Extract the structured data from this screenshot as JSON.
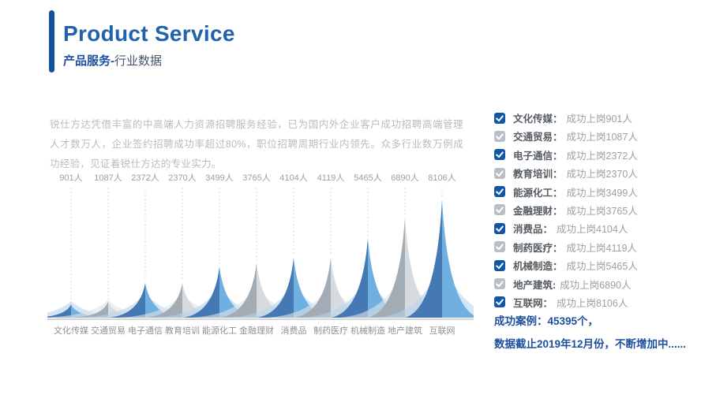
{
  "header": {
    "title": "Product Service",
    "subtitle_primary": "产品服务",
    "subtitle_separator": "-",
    "subtitle_secondary": "行业数据"
  },
  "intro": {
    "text": "锐仕方达凭借丰富的中高端人力资源招聘服务经验，已为国内外企业客户成功招聘高端管理人才数万人，企业签约招聘成功率超过80%，职位招聘周期行业内领先。众多行业数万例成功经验，见证着锐仕方达的专业实力。"
  },
  "chart_data": {
    "type": "area",
    "subtype": "mirrored-concave-peaks",
    "title": "行业数据 (成功上岗人数)",
    "categories": [
      "文化传媒",
      "交通贸易",
      "电子通信",
      "教育培训",
      "能源化工",
      "金融理财",
      "消费品",
      "制药医疗",
      "机械制造",
      "地产建筑",
      "互联网"
    ],
    "values": [
      901,
      1087,
      2372,
      2370,
      3499,
      3765,
      4104,
      4119,
      5465,
      6890,
      8106
    ],
    "value_labels": [
      "901人",
      "1087人",
      "2372人",
      "2370人",
      "3499人",
      "3765人",
      "4104人",
      "4119人",
      "5465人",
      "6890人",
      "8106人"
    ],
    "color_pattern": [
      "blue",
      "gray",
      "blue",
      "gray",
      "blue",
      "gray",
      "blue",
      "gray",
      "blue",
      "gray",
      "blue"
    ],
    "unit": "人",
    "xlabel": "",
    "ylabel": "",
    "ylim": [
      0,
      8106
    ],
    "grid": "dotted vertical leader lines above each peak",
    "legend_position": "right checklist panel"
  },
  "checklist": {
    "items": [
      {
        "label": "文化传媒：",
        "value": "成功上岗901人",
        "checkbox": "blue"
      },
      {
        "label": "交通贸易：",
        "value": "成功上岗1087人",
        "checkbox": "gray"
      },
      {
        "label": "电子通信：",
        "value": "成功上岗2372人",
        "checkbox": "blue"
      },
      {
        "label": "教育培训：",
        "value": "成功上岗2370人",
        "checkbox": "gray"
      },
      {
        "label": "能源化工：",
        "value": "成功上岗3499人",
        "checkbox": "blue"
      },
      {
        "label": "金融理财：",
        "value": "成功上岗3765人",
        "checkbox": "gray"
      },
      {
        "label": "消费品：",
        "value": "成功上岗4104人",
        "checkbox": "blue"
      },
      {
        "label": "制药医疗：",
        "value": "成功上岗4119人",
        "checkbox": "gray"
      },
      {
        "label": "机械制造：",
        "value": "成功上岗5465人",
        "checkbox": "blue"
      },
      {
        "label": "地产建筑:",
        "value": "成功上岗6890人",
        "checkbox": "gray"
      },
      {
        "label": "互联网：",
        "value": "成功上岗8106人",
        "checkbox": "blue"
      }
    ]
  },
  "summary": {
    "line1": "成功案例：45395个，",
    "line2": "数据截止2019年12月份，不断增加中......"
  },
  "colors": {
    "accent_bar": "#1450a0",
    "title": "#2062ae",
    "subtitle_primary": "#1d4f9e",
    "subtitle_secondary": "#46566c",
    "blue_dark": "#4579b4",
    "blue_light": "#6fb0e0",
    "blue_pale": "#b7d3eb",
    "gray_dark": "#a3abb4",
    "gray_light": "#d6dbdf",
    "gray_pale": "#e0e4e8",
    "checkbox_blue": "#1256a8",
    "checkbox_gray": "#b9bfc6",
    "summary_text": "#1d4f9f",
    "value_label": "#9aa0a6",
    "category_label": "#8b9197",
    "baseline": "#d2d4d6",
    "leader_line": "#c9ccce"
  }
}
